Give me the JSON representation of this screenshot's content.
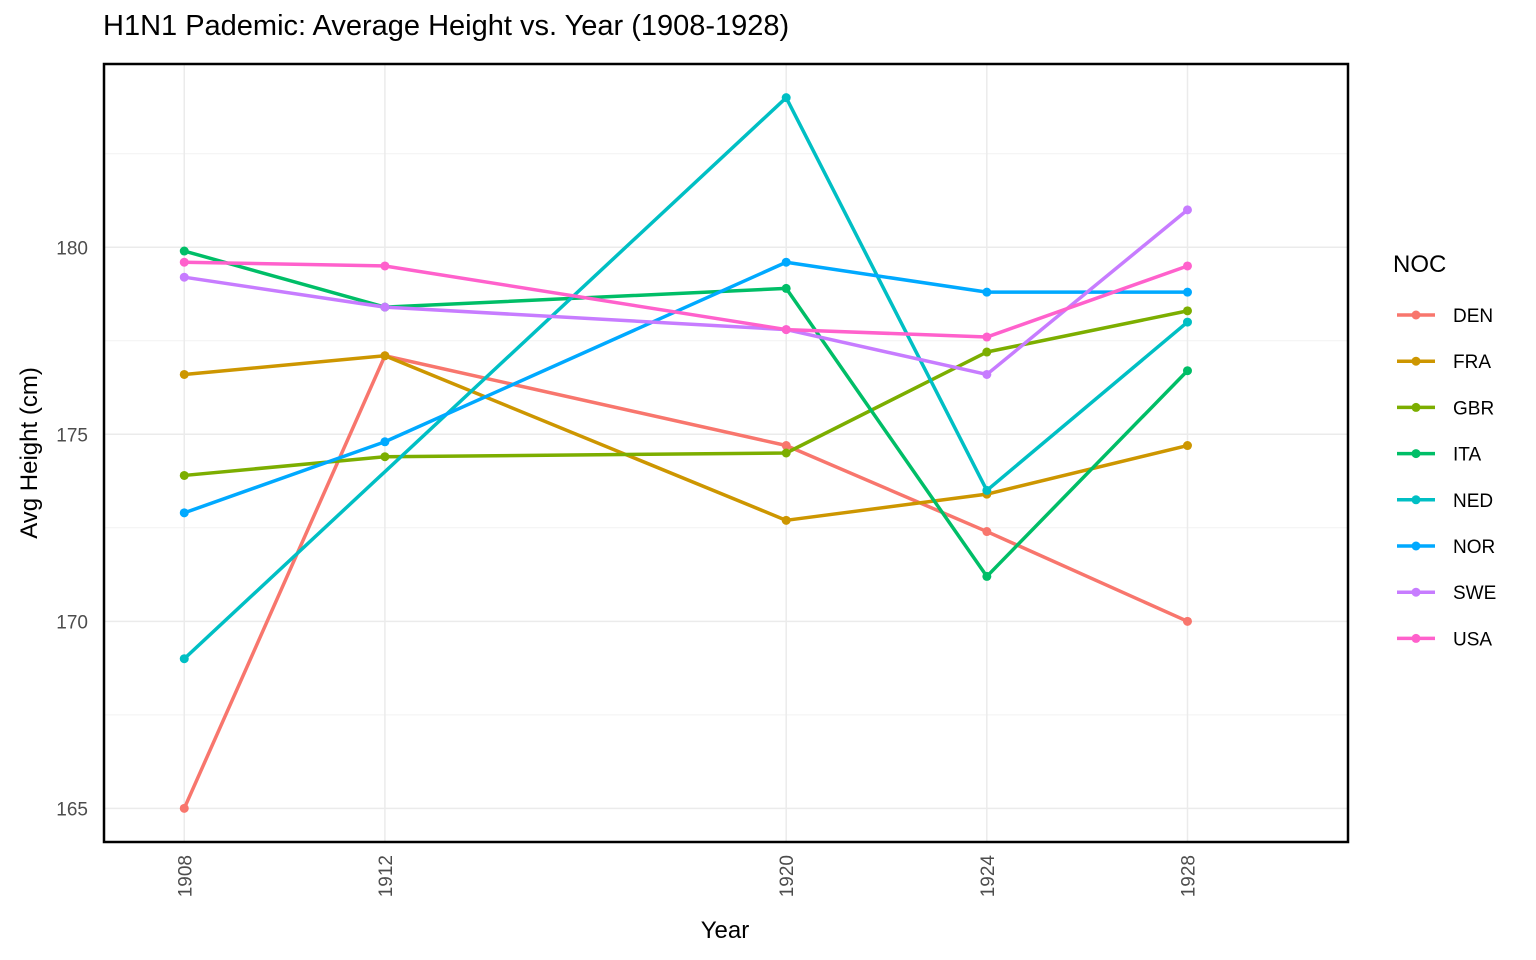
{
  "chart_data": {
    "type": "line",
    "title": "H1N1 Pademic: Average Height vs. Year (1908-1928)",
    "xlabel": "Year",
    "ylabel": "Avg Height (cm)",
    "x": [
      "1908",
      "1912",
      "1920",
      "1924",
      "1928"
    ],
    "yticks": [
      "165",
      "170",
      "175",
      "180"
    ],
    "ylim": [
      164.1,
      184.9
    ],
    "grid": true,
    "legend": {
      "title": "NOC",
      "position": "right"
    },
    "series": [
      {
        "name": "DEN",
        "color": "#F8766D",
        "values": [
          165.0,
          177.1,
          174.7,
          172.4,
          170.0
        ]
      },
      {
        "name": "FRA",
        "color": "#CD9600",
        "values": [
          176.6,
          177.1,
          172.7,
          173.4,
          174.7
        ]
      },
      {
        "name": "GBR",
        "color": "#7CAE00",
        "values": [
          173.9,
          174.4,
          174.5,
          177.2,
          178.3
        ]
      },
      {
        "name": "ITA",
        "color": "#00BE67",
        "values": [
          179.9,
          178.4,
          178.9,
          171.2,
          176.7
        ]
      },
      {
        "name": "NED",
        "color": "#00BFC4",
        "values": [
          169.0,
          null,
          184.0,
          173.5,
          178.0
        ]
      },
      {
        "name": "NOR",
        "color": "#00A9FF",
        "values": [
          172.9,
          174.8,
          179.6,
          178.8,
          178.8
        ]
      },
      {
        "name": "SWE",
        "color": "#C77CFF",
        "values": [
          179.2,
          178.4,
          177.8,
          176.6,
          181.0
        ]
      },
      {
        "name": "USA",
        "color": "#FF61CC",
        "values": [
          179.6,
          179.5,
          177.8,
          177.6,
          179.5
        ]
      }
    ]
  }
}
